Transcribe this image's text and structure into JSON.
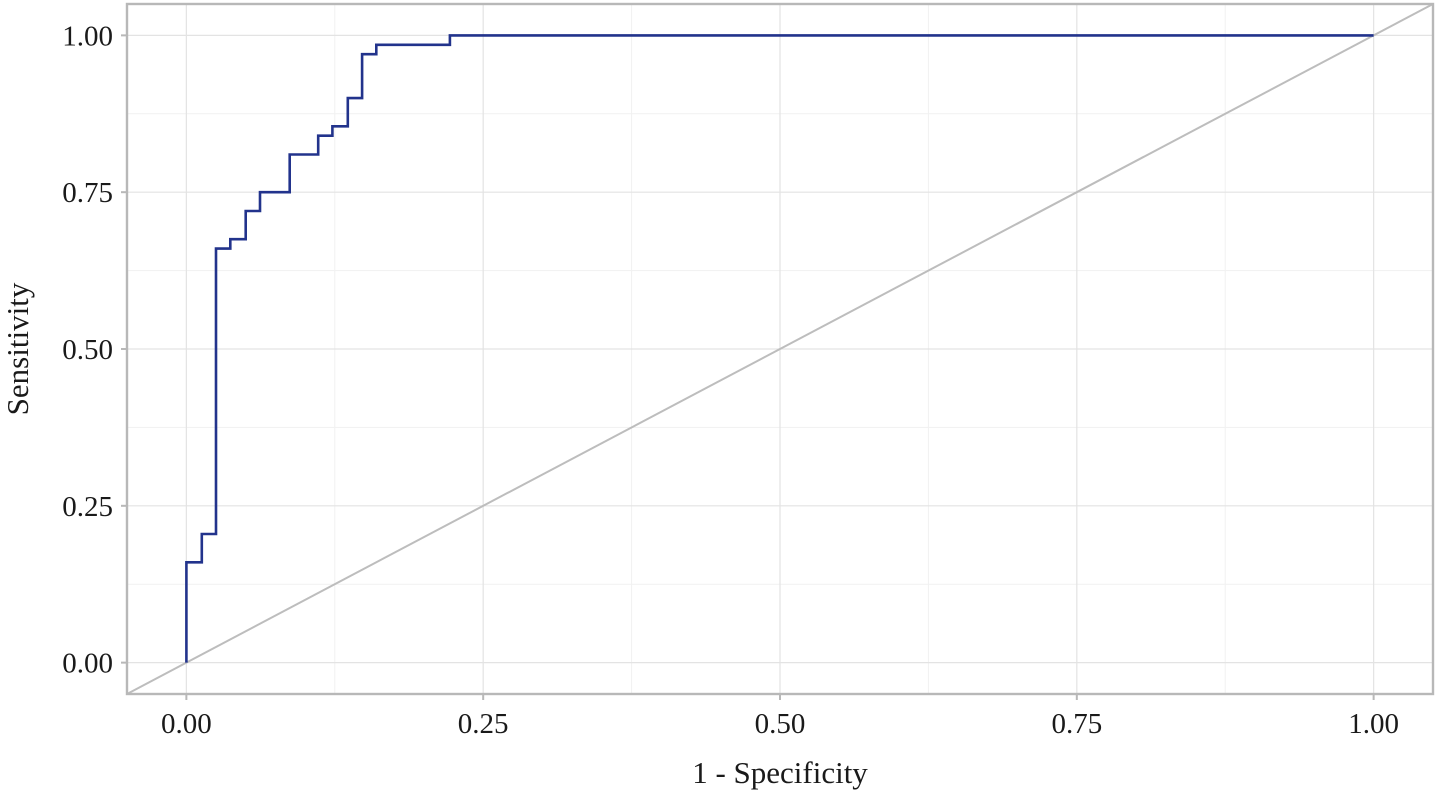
{
  "chart_data": {
    "type": "line",
    "title": "",
    "xlabel": "1 - Specificity",
    "ylabel": "Sensitivity",
    "xlim": [
      -0.05,
      1.05
    ],
    "ylim": [
      -0.05,
      1.05
    ],
    "x_ticks": [
      "0.00",
      "0.25",
      "0.50",
      "0.75",
      "1.00"
    ],
    "y_ticks": [
      "0.00",
      "0.25",
      "0.50",
      "0.75",
      "1.00"
    ],
    "grid": true,
    "legend": "none",
    "colors": {
      "roc": "#22338c",
      "reference": "#bdbdbd",
      "grid": "#e3e3e3",
      "frame": "#b8b8b8"
    },
    "series": [
      {
        "style": "step",
        "x": [
          0.0,
          0.0,
          0.013,
          0.013,
          0.025,
          0.025,
          0.037,
          0.037,
          0.05,
          0.05,
          0.062,
          0.062,
          0.087,
          0.087,
          0.111,
          0.111,
          0.123,
          0.123,
          0.136,
          0.136,
          0.148,
          0.148,
          0.16,
          0.16,
          0.222,
          0.222,
          1.0
        ],
        "y": [
          0.0,
          0.16,
          0.16,
          0.205,
          0.205,
          0.66,
          0.66,
          0.675,
          0.675,
          0.72,
          0.72,
          0.75,
          0.75,
          0.81,
          0.81,
          0.84,
          0.84,
          0.855,
          0.855,
          0.9,
          0.9,
          0.97,
          0.97,
          0.985,
          0.985,
          1.0,
          1.0
        ]
      },
      {
        "style": "reference",
        "x": [
          -0.05,
          1.05
        ],
        "y": [
          -0.05,
          1.05
        ]
      }
    ]
  }
}
